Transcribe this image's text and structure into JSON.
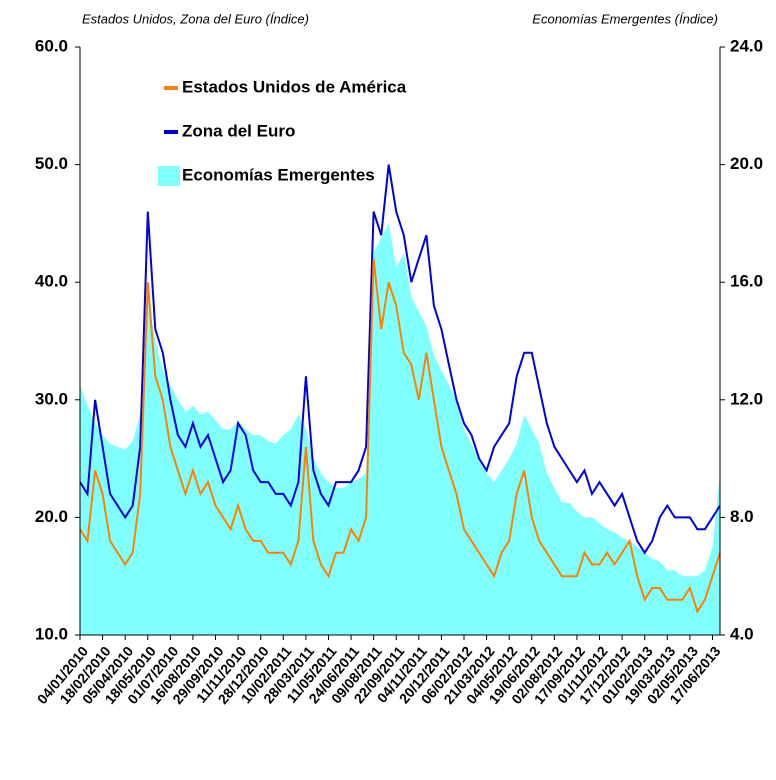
{
  "chart_data": {
    "type": "line",
    "y_title": "Estados Unidos, Zona del Euro (Índice)",
    "y2_title": "Economías Emergentes (Índice)",
    "categories": [
      "04/01/2010",
      null,
      null,
      "18/02/2010",
      null,
      null,
      "05/04/2010",
      null,
      null,
      "18/05/2010",
      null,
      null,
      "01/07/2010",
      null,
      null,
      "16/08/2010",
      null,
      null,
      "29/09/2010",
      null,
      null,
      "11/11/2010",
      null,
      null,
      "28/12/2010",
      null,
      null,
      "10/02/2011",
      null,
      null,
      "28/03/2011",
      null,
      null,
      "11/05/2011",
      null,
      null,
      "24/06/2011",
      null,
      null,
      "09/08/2011",
      null,
      null,
      "22/09/2011",
      null,
      null,
      "04/11/2011",
      null,
      null,
      "20/12/2011",
      null,
      null,
      "06/02/2012",
      null,
      null,
      "21/03/2012",
      null,
      null,
      "04/05/2012",
      null,
      null,
      "19/06/2012",
      null,
      null,
      "02/08/2012",
      null,
      null,
      "17/09/2012",
      null,
      null,
      "01/11/2012",
      null,
      null,
      "17/12/2012",
      null,
      null,
      "01/02/2013",
      null,
      null,
      "19/03/2013",
      null,
      null,
      "02/05/2013",
      null,
      null,
      "17/06/2013",
      null
    ],
    "series": [
      {
        "name": "Economías Emergentes",
        "color": "#80ffff",
        "axis": "y2",
        "type": "area",
        "values": [
          12.5,
          11.8,
          11.2,
          10.8,
          10.5,
          10.4,
          10.3,
          10.6,
          11.5,
          15.5,
          14,
          13,
          12.5,
          12,
          11.6,
          11.8,
          11.5,
          11.6,
          11.3,
          11,
          11,
          11.3,
          11,
          10.8,
          10.8,
          10.6,
          10.5,
          10.8,
          11,
          11.5,
          11,
          10,
          9.5,
          9.2,
          9,
          9,
          9.2,
          9.3,
          9.5,
          17,
          17.5,
          18,
          16.5,
          17,
          15.5,
          15,
          14.5,
          13.5,
          13,
          12.5,
          12,
          11,
          10.5,
          10,
          9.5,
          9.2,
          9.6,
          10,
          10.5,
          11.5,
          11,
          10.5,
          9.5,
          9,
          8.5,
          8.5,
          8.2,
          8,
          8,
          7.8,
          7.6,
          7.5,
          7.3,
          7.2,
          7,
          6.8,
          6.6,
          6.5,
          6.2,
          6.2,
          6,
          6,
          6,
          6.2,
          7,
          9.5
        ]
      },
      {
        "name": "Zona del Euro",
        "color": "#0000dd",
        "type": "line",
        "values": [
          23,
          22,
          30,
          26,
          22,
          21,
          20,
          21,
          26,
          46,
          36,
          34,
          30,
          27,
          26,
          28,
          26,
          27,
          25,
          23,
          24,
          28,
          27,
          24,
          23,
          23,
          22,
          22,
          21,
          23,
          32,
          24,
          22,
          21,
          23,
          23,
          23,
          24,
          26,
          46,
          44,
          50,
          46,
          44,
          40,
          42,
          44,
          38,
          36,
          33,
          30,
          28,
          27,
          25,
          24,
          26,
          27,
          28,
          32,
          34,
          34,
          31,
          28,
          26,
          25,
          24,
          23,
          24,
          22,
          23,
          22,
          21,
          22,
          20,
          18,
          17,
          18,
          20,
          21,
          20,
          20,
          20,
          19,
          19,
          20,
          21
        ]
      },
      {
        "name": "Estados Unidos de América",
        "color": "#ff8000",
        "type": "line",
        "values": [
          19,
          18,
          24,
          22,
          18,
          17,
          16,
          17,
          22,
          40,
          32,
          30,
          26,
          24,
          22,
          24,
          22,
          23,
          21,
          20,
          19,
          21,
          19,
          18,
          18,
          17,
          17,
          17,
          16,
          18,
          26,
          18,
          16,
          15,
          17,
          17,
          19,
          18,
          20,
          42,
          36,
          40,
          38,
          34,
          33,
          30,
          34,
          30,
          26,
          24,
          22,
          19,
          18,
          17,
          16,
          15,
          17,
          18,
          22,
          24,
          20,
          18,
          17,
          16,
          15,
          15,
          15,
          17,
          16,
          16,
          17,
          16,
          17,
          18,
          15,
          13,
          14,
          14,
          13,
          13,
          13,
          14,
          12,
          13,
          15,
          17
        ]
      }
    ],
    "legend_order": [
      2,
      1,
      0
    ],
    "legend": "upper left",
    "ylim": [
      10,
      60
    ],
    "yticks": [
      {
        "value": 10,
        "label": "10.0"
      },
      {
        "value": 20,
        "label": "20.0"
      },
      {
        "value": 30,
        "label": "30.0"
      },
      {
        "value": 40,
        "label": "40.0"
      },
      {
        "value": 50,
        "label": "50.0"
      },
      {
        "value": 60,
        "label": "60.0"
      }
    ],
    "y2lim": [
      4,
      24
    ],
    "y2ticks": [
      {
        "value": 4,
        "label": "4.0"
      },
      {
        "value": 8,
        "label": "8.0"
      },
      {
        "value": 12,
        "label": "12.0"
      },
      {
        "value": 16,
        "label": "16.0"
      },
      {
        "value": 20,
        "label": "20.0"
      },
      {
        "value": 24,
        "label": "24.0"
      }
    ]
  }
}
